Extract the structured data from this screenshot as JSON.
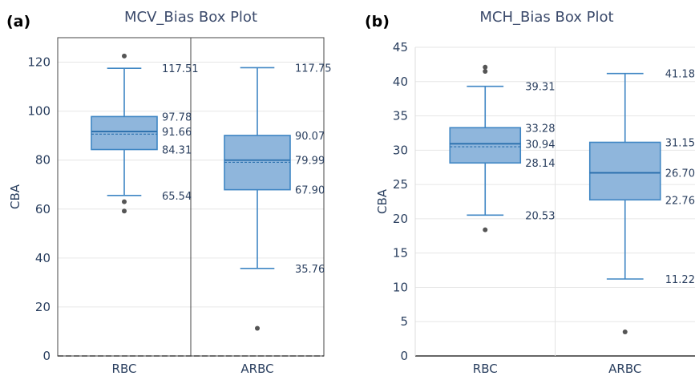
{
  "colors": {
    "box_fill": "#8fb6dc",
    "box_line": "#3f86c4",
    "outlier": "#555555",
    "grid": "#e6e6e6",
    "frame": "#444444",
    "text": "#2a3f5f"
  },
  "chart_data": [
    {
      "type": "box",
      "panel": "(a)",
      "title": "MCV_Bias Box Plot",
      "ylabel": "CBA",
      "xlabel": "",
      "ylim": [
        0,
        130
      ],
      "yticks": [
        0,
        20,
        40,
        60,
        80,
        100,
        120
      ],
      "grid": true,
      "legend": "none",
      "categories": [
        "RBC",
        "ARBC"
      ],
      "boxes": [
        {
          "category": "RBC",
          "upper_fence": 117.51,
          "q3": 97.78,
          "median": 91.66,
          "mean": 90.6,
          "q1": 84.31,
          "lower_fence": 65.54,
          "outliers": [
            122.5,
            63.0,
            59.2
          ],
          "labels": [
            "117.51",
            "97.78",
            "91.66",
            "84.31",
            "65.54"
          ]
        },
        {
          "category": "ARBC",
          "upper_fence": 117.75,
          "q3": 90.07,
          "median": 79.99,
          "mean": 79.1,
          "q1": 67.9,
          "lower_fence": 35.76,
          "outliers": [
            11.3
          ],
          "labels": [
            "117.75",
            "90.07",
            "79.99",
            "67.90",
            "35.76"
          ]
        }
      ]
    },
    {
      "type": "box",
      "panel": "(b)",
      "title": "MCH_Bias Box Plot",
      "ylabel": "CBA",
      "xlabel": "",
      "ylim": [
        0,
        45
      ],
      "yticks": [
        0,
        5,
        10,
        15,
        20,
        25,
        30,
        35,
        40,
        45
      ],
      "grid": true,
      "legend": "none",
      "categories": [
        "RBC",
        "ARBC"
      ],
      "boxes": [
        {
          "category": "RBC",
          "upper_fence": 39.31,
          "q3": 33.28,
          "median": 30.94,
          "mean": 30.5,
          "q1": 28.14,
          "lower_fence": 20.53,
          "outliers": [
            42.1,
            41.5,
            18.4
          ],
          "labels": [
            "39.31",
            "33.28",
            "30.94",
            "28.14",
            "20.53"
          ]
        },
        {
          "category": "ARBC",
          "upper_fence": 41.18,
          "q3": 31.15,
          "median": 26.7,
          "mean": 26.7,
          "q1": 22.76,
          "lower_fence": 11.22,
          "outliers": [
            3.5
          ],
          "labels": [
            "41.18",
            "31.15",
            "26.70",
            "22.76",
            "11.22"
          ]
        }
      ]
    }
  ]
}
